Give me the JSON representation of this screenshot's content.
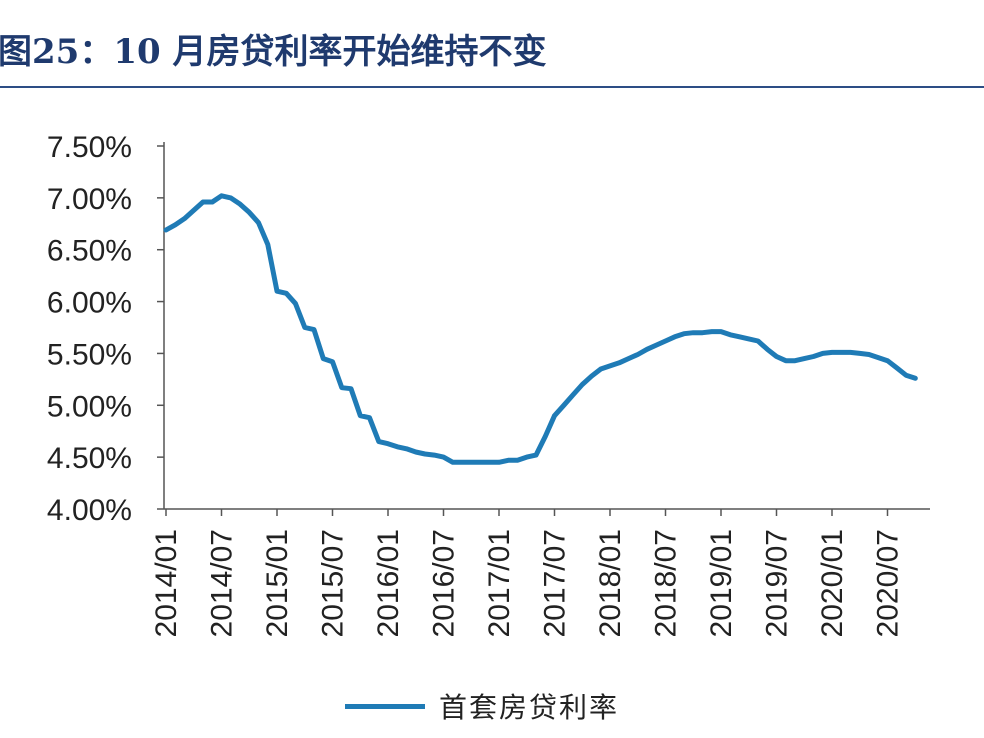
{
  "title": "图25：10 月房贷利率开始维持不变",
  "chart_data": {
    "type": "line",
    "x_ticks": [
      "2014/01",
      "2014/07",
      "2015/01",
      "2015/07",
      "2016/01",
      "2016/07",
      "2017/01",
      "2017/07",
      "2018/01",
      "2018/07",
      "2019/01",
      "2019/07",
      "2020/01",
      "2020/07"
    ],
    "y_ticks": [
      "7.50%",
      "7.00%",
      "6.50%",
      "6.00%",
      "5.50%",
      "5.00%",
      "4.50%",
      "4.00%"
    ],
    "ylim": [
      4.0,
      7.5
    ],
    "xlabel": "",
    "ylabel": "",
    "legend_position": "bottom",
    "series": [
      {
        "name": "首套房贷利率",
        "color": "#1f7bb6",
        "x": [
          "2014/01",
          "2014/02",
          "2014/03",
          "2014/04",
          "2014/05",
          "2014/06",
          "2014/07",
          "2014/08",
          "2014/09",
          "2014/10",
          "2014/11",
          "2014/12",
          "2015/01",
          "2015/02",
          "2015/03",
          "2015/04",
          "2015/05",
          "2015/06",
          "2015/07",
          "2015/08",
          "2015/09",
          "2015/10",
          "2015/11",
          "2015/12",
          "2016/01",
          "2016/02",
          "2016/03",
          "2016/04",
          "2016/05",
          "2016/06",
          "2016/07",
          "2016/08",
          "2016/09",
          "2016/10",
          "2016/11",
          "2016/12",
          "2017/01",
          "2017/02",
          "2017/03",
          "2017/04",
          "2017/05",
          "2017/06",
          "2017/07",
          "2017/08",
          "2017/09",
          "2017/10",
          "2017/11",
          "2017/12",
          "2018/01",
          "2018/02",
          "2018/03",
          "2018/04",
          "2018/05",
          "2018/06",
          "2018/07",
          "2018/08",
          "2018/09",
          "2018/10",
          "2018/11",
          "2018/12",
          "2019/01",
          "2019/02",
          "2019/03",
          "2019/04",
          "2019/05",
          "2019/06",
          "2019/07",
          "2019/08",
          "2019/09",
          "2019/10",
          "2019/11",
          "2019/12",
          "2020/01",
          "2020/02",
          "2020/03",
          "2020/04",
          "2020/05",
          "2020/06",
          "2020/07",
          "2020/08",
          "2020/09",
          "2020/10"
        ],
        "values": [
          6.69,
          6.74,
          6.8,
          6.88,
          6.96,
          6.96,
          7.02,
          7.0,
          6.94,
          6.86,
          6.76,
          6.55,
          6.1,
          6.08,
          5.98,
          5.75,
          5.73,
          5.45,
          5.42,
          5.17,
          5.16,
          4.9,
          4.88,
          4.65,
          4.63,
          4.6,
          4.58,
          4.55,
          4.53,
          4.52,
          4.5,
          4.45,
          4.45,
          4.45,
          4.45,
          4.45,
          4.45,
          4.47,
          4.47,
          4.5,
          4.52,
          4.7,
          4.9,
          5.0,
          5.1,
          5.2,
          5.28,
          5.35,
          5.38,
          5.41,
          5.45,
          5.49,
          5.54,
          5.58,
          5.62,
          5.66,
          5.69,
          5.7,
          5.7,
          5.71,
          5.71,
          5.68,
          5.66,
          5.64,
          5.62,
          5.54,
          5.47,
          5.43,
          5.43,
          5.45,
          5.47,
          5.5,
          5.51,
          5.51,
          5.51,
          5.5,
          5.49,
          5.46,
          5.43,
          5.36,
          5.29,
          5.26
        ]
      }
    ]
  }
}
